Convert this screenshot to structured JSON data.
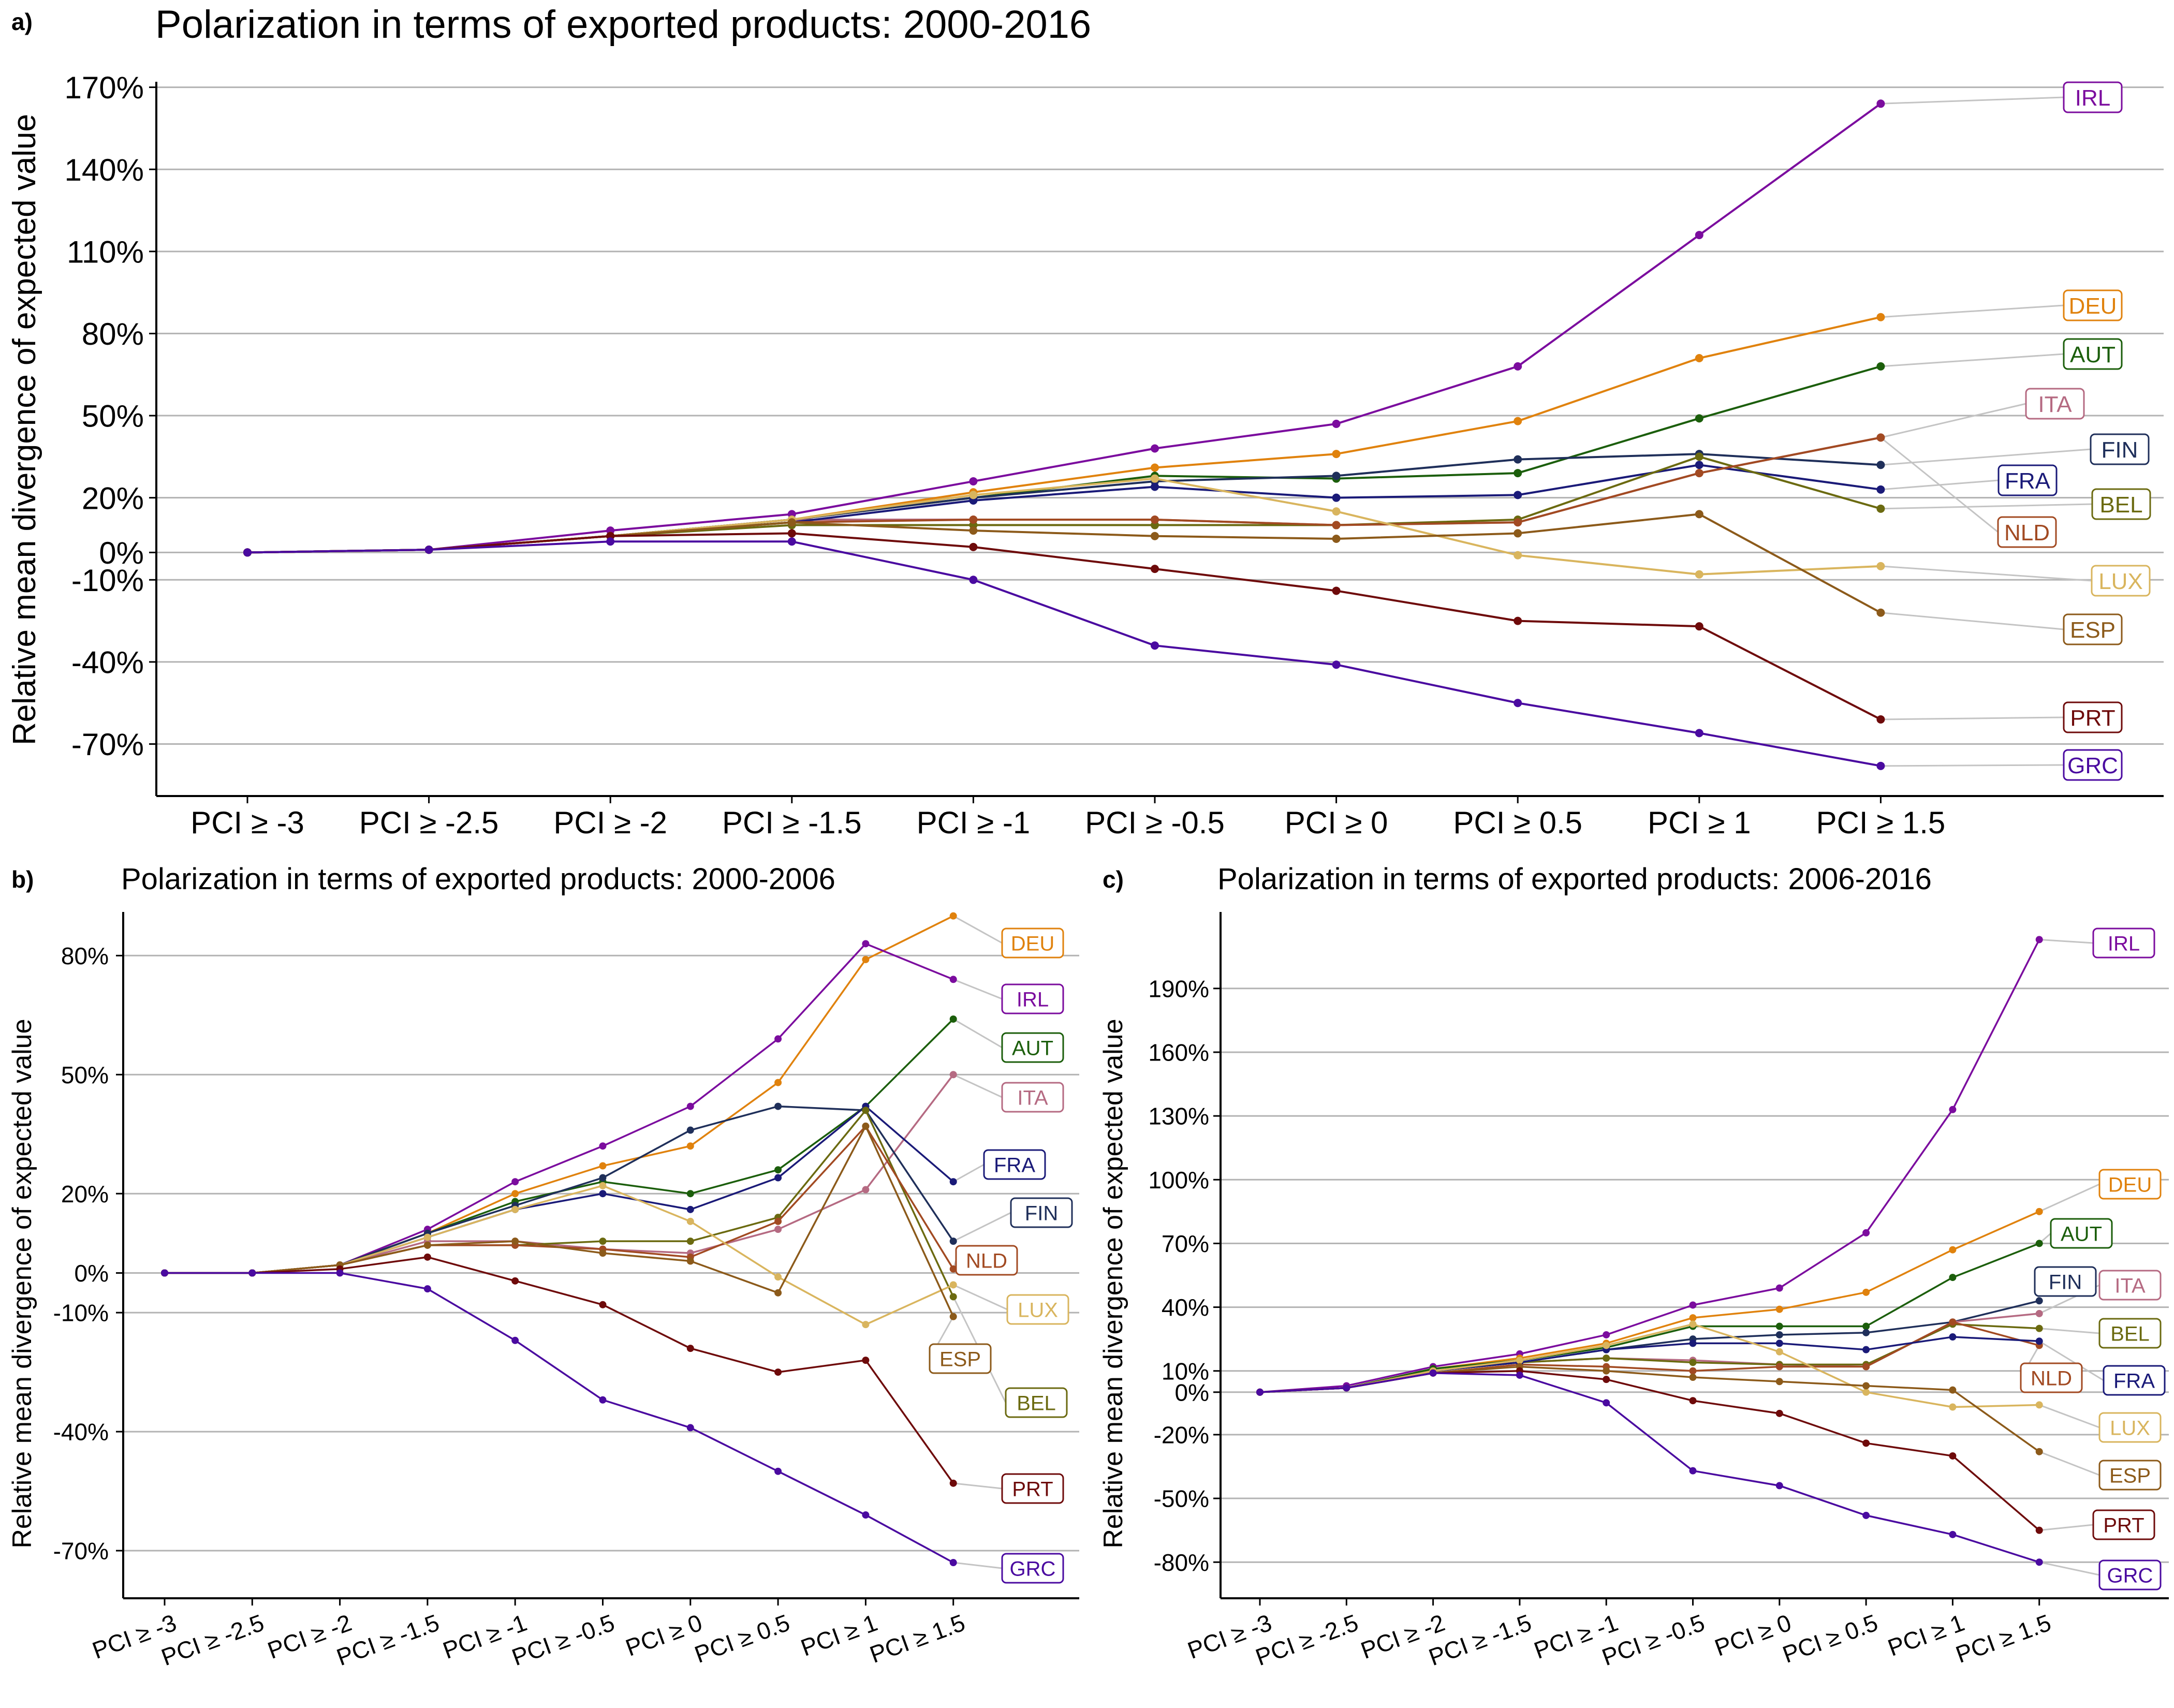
{
  "countries": {
    "IRL": {
      "color": "#7B0C9E"
    },
    "DEU": {
      "color": "#E0820D"
    },
    "AUT": {
      "color": "#1B5E0B"
    },
    "ITA": {
      "color": "#B56A82"
    },
    "FIN": {
      "color": "#1F2F5A"
    },
    "FRA": {
      "color": "#1A1A78"
    },
    "BEL": {
      "color": "#6B6A10"
    },
    "NLD": {
      "color": "#A24A22"
    },
    "LUX": {
      "color": "#D9B55E"
    },
    "ESP": {
      "color": "#8C5A1A"
    },
    "PRT": {
      "color": "#6E0A0A"
    },
    "GRC": {
      "color": "#4A0AA0"
    }
  },
  "chart_data": [
    {
      "panel": "a)",
      "type": "line",
      "title": "Polarization in terms of exported products: 2000-2016",
      "xlabel": "",
      "ylabel": "Relative mean divergence of expected value",
      "categories": [
        "PCI ≥ -3",
        "PCI ≥ -2.5",
        "PCI ≥ -2",
        "PCI ≥ -1.5",
        "PCI ≥ -1",
        "PCI ≥ -0.5",
        "PCI ≥ 0",
        "PCI ≥ 0.5",
        "PCI ≥ 1",
        "PCI ≥ 1.5"
      ],
      "yticks": [
        -70,
        -40,
        -10,
        0,
        20,
        50,
        80,
        110,
        140,
        170
      ],
      "ytick_labels": [
        "-70%",
        "-40%",
        "-10%",
        "0%",
        "20%",
        "50%",
        "80%",
        "110%",
        "140%",
        "170%"
      ],
      "ylim": [
        -89,
        172
      ],
      "grid": true,
      "legend": "end-labels",
      "series": [
        {
          "name": "IRL",
          "values": [
            0,
            1,
            8,
            14,
            26,
            38,
            47,
            68,
            116,
            164
          ]
        },
        {
          "name": "DEU",
          "values": [
            0,
            1,
            6,
            12,
            22,
            31,
            36,
            48,
            71,
            86
          ]
        },
        {
          "name": "AUT",
          "values": [
            0,
            1,
            6,
            12,
            20,
            28,
            27,
            29,
            49,
            68
          ]
        },
        {
          "name": "ITA",
          "values": [
            0,
            1,
            6,
            12,
            12,
            12,
            10,
            11,
            29,
            42
          ]
        },
        {
          "name": "FIN",
          "values": [
            0,
            1,
            6,
            12,
            20,
            26,
            28,
            34,
            36,
            32
          ]
        },
        {
          "name": "FRA",
          "values": [
            0,
            1,
            6,
            11,
            19,
            24,
            20,
            21,
            32,
            23
          ]
        },
        {
          "name": "BEL",
          "values": [
            0,
            1,
            6,
            10,
            10,
            10,
            10,
            12,
            35,
            16
          ]
        },
        {
          "name": "NLD",
          "values": [
            0,
            1,
            6,
            11,
            12,
            12,
            10,
            11,
            29,
            42
          ]
        },
        {
          "name": "LUX",
          "values": [
            0,
            1,
            6,
            12,
            21,
            27,
            15,
            -1,
            -8,
            -5
          ]
        },
        {
          "name": "ESP",
          "values": [
            0,
            1,
            6,
            11,
            8,
            6,
            5,
            7,
            14,
            -22
          ]
        },
        {
          "name": "PRT",
          "values": [
            0,
            1,
            6,
            7,
            2,
            -6,
            -14,
            -25,
            -27,
            -61
          ]
        },
        {
          "name": "GRC",
          "values": [
            0,
            1,
            4,
            4,
            -10,
            -34,
            -41,
            -55,
            -66,
            -78
          ]
        }
      ]
    },
    {
      "panel": "b)",
      "type": "line",
      "title": "Polarization in terms of exported products: 2000-2006",
      "xlabel": "",
      "ylabel": "Relative mean divergence of expected value",
      "categories": [
        "PCI ≥ -3",
        "PCI ≥ -2.5",
        "PCI ≥ -2",
        "PCI ≥ -1.5",
        "PCI ≥ -1",
        "PCI ≥ -0.5",
        "PCI ≥ 0",
        "PCI ≥ 0.5",
        "PCI ≥ 1",
        "PCI ≥ 1.5"
      ],
      "yticks": [
        -70,
        -40,
        -10,
        0,
        20,
        50,
        80
      ],
      "ytick_labels": [
        "-70%",
        "-40%",
        "-10%",
        "0%",
        "20%",
        "50%",
        "80%"
      ],
      "ylim": [
        -82,
        91
      ],
      "grid": true,
      "legend": "end-labels",
      "series": [
        {
          "name": "DEU",
          "values": [
            0,
            0,
            2,
            10,
            20,
            27,
            32,
            48,
            79,
            90
          ]
        },
        {
          "name": "IRL",
          "values": [
            0,
            0,
            2,
            11,
            23,
            32,
            42,
            59,
            83,
            74
          ]
        },
        {
          "name": "AUT",
          "values": [
            0,
            0,
            2,
            10,
            18,
            23,
            20,
            26,
            42,
            64
          ]
        },
        {
          "name": "ITA",
          "values": [
            0,
            0,
            2,
            8,
            8,
            6,
            5,
            11,
            21,
            50
          ]
        },
        {
          "name": "FRA",
          "values": [
            0,
            0,
            2,
            9,
            16,
            20,
            16,
            24,
            42,
            23
          ]
        },
        {
          "name": "FIN",
          "values": [
            0,
            0,
            2,
            10,
            17,
            24,
            36,
            42,
            41,
            8
          ]
        },
        {
          "name": "BEL",
          "values": [
            0,
            0,
            2,
            7,
            7,
            8,
            8,
            14,
            41,
            -6
          ]
        },
        {
          "name": "NLD",
          "values": [
            0,
            0,
            2,
            7,
            7,
            6,
            4,
            13,
            37,
            1
          ]
        },
        {
          "name": "LUX",
          "values": [
            0,
            0,
            2,
            9,
            16,
            22,
            13,
            -1,
            -13,
            -3
          ]
        },
        {
          "name": "ESP",
          "values": [
            0,
            0,
            2,
            7,
            8,
            5,
            3,
            -5,
            37,
            -11
          ]
        },
        {
          "name": "PRT",
          "values": [
            0,
            0,
            1,
            4,
            -2,
            -8,
            -19,
            -25,
            -22,
            -53
          ]
        },
        {
          "name": "GRC",
          "values": [
            0,
            0,
            0,
            -4,
            -17,
            -32,
            -39,
            -50,
            -61,
            -73
          ]
        }
      ]
    },
    {
      "panel": "c)",
      "type": "line",
      "title": "Polarization in terms of exported products: 2006-2016",
      "xlabel": "",
      "ylabel": "Relative mean divergence of expected value",
      "categories": [
        "PCI ≥ -3",
        "PCI ≥ -2.5",
        "PCI ≥ -2",
        "PCI ≥ -1.5",
        "PCI ≥ -1",
        "PCI ≥ -0.5",
        "PCI ≥ 0",
        "PCI ≥ 0.5",
        "PCI ≥ 1",
        "PCI ≥ 1.5"
      ],
      "yticks": [
        -80,
        -50,
        -20,
        0,
        10,
        40,
        70,
        100,
        130,
        160,
        190
      ],
      "ytick_labels": [
        "-80%",
        "-50%",
        "-20%",
        "0%",
        "10%",
        "40%",
        "70%",
        "100%",
        "130%",
        "160%",
        "190%"
      ],
      "ylim": [
        -97,
        226
      ],
      "grid": true,
      "legend": "end-labels",
      "series": [
        {
          "name": "IRL",
          "values": [
            0,
            3,
            12,
            18,
            27,
            41,
            49,
            75,
            133,
            213
          ]
        },
        {
          "name": "DEU",
          "values": [
            0,
            2,
            11,
            16,
            23,
            35,
            39,
            47,
            67,
            85
          ]
        },
        {
          "name": "AUT",
          "values": [
            0,
            2,
            11,
            15,
            21,
            31,
            31,
            31,
            54,
            70
          ]
        },
        {
          "name": "FIN",
          "values": [
            0,
            2,
            10,
            14,
            20,
            25,
            27,
            28,
            33,
            43
          ]
        },
        {
          "name": "ITA",
          "values": [
            0,
            2,
            10,
            14,
            16,
            15,
            13,
            12,
            33,
            37
          ]
        },
        {
          "name": "BEL",
          "values": [
            0,
            2,
            10,
            14,
            16,
            14,
            13,
            13,
            32,
            30
          ]
        },
        {
          "name": "NLD",
          "values": [
            0,
            2,
            9,
            13,
            12,
            10,
            12,
            12,
            33,
            22
          ]
        },
        {
          "name": "FRA",
          "values": [
            0,
            2,
            10,
            14,
            20,
            23,
            23,
            20,
            26,
            24
          ]
        },
        {
          "name": "LUX",
          "values": [
            0,
            2,
            10,
            15,
            22,
            32,
            19,
            0,
            -7,
            -6
          ]
        },
        {
          "name": "ESP",
          "values": [
            0,
            2,
            9,
            12,
            10,
            7,
            5,
            3,
            1,
            -28
          ]
        },
        {
          "name": "PRT",
          "values": [
            0,
            2,
            9,
            10,
            6,
            -4,
            -10,
            -24,
            -30,
            -65
          ]
        },
        {
          "name": "GRC",
          "values": [
            0,
            2,
            9,
            8,
            -5,
            -37,
            -44,
            -58,
            -67,
            -80
          ]
        }
      ]
    }
  ]
}
